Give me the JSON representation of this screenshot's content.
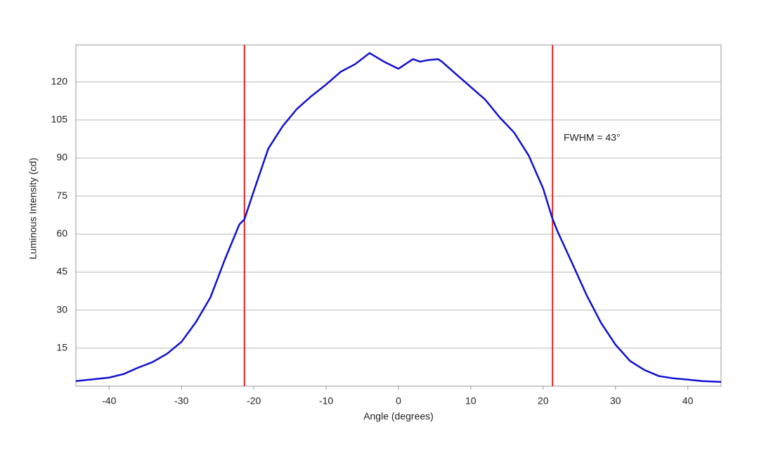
{
  "chart_data": {
    "type": "line",
    "xlabel": "Angle (degrees)",
    "ylabel": "Luminous Intensity (cd)",
    "annotation": "FWHM = 43°",
    "x": [
      -44.6,
      -40,
      -38,
      -36,
      -34,
      -32,
      -30,
      -28,
      -26,
      -24,
      -22,
      -21.3,
      -20,
      -18,
      -16,
      -14,
      -12,
      -10,
      -8,
      -6,
      -4,
      -2,
      0,
      2,
      3,
      4,
      5.5,
      6,
      8,
      10,
      12,
      14,
      16,
      18,
      20,
      21.3,
      22,
      24,
      26,
      28,
      30,
      32,
      34,
      36,
      38,
      40,
      42,
      44.6
    ],
    "series": [
      {
        "color": "#1010d0",
        "values": [
          2,
          3.4,
          4.8,
          7.3,
          9.5,
          12.8,
          17.5,
          25.3,
          35,
          50,
          63.8,
          65.8,
          77,
          93.7,
          102.6,
          109.5,
          114.5,
          119,
          124,
          127,
          131.4,
          128,
          125.2,
          129,
          128,
          128.6,
          129,
          128,
          123,
          118,
          113,
          106,
          100,
          91,
          78,
          66,
          61,
          48.6,
          36,
          25,
          16.4,
          10,
          6.4,
          4,
          3.1,
          2.6,
          2,
          1.7
        ]
      }
    ],
    "vlines": [
      -21.3,
      21.3
    ],
    "vline_color": "#e02020",
    "xlim": [
      -44.6,
      44.6
    ],
    "ylim": [
      0,
      134.6
    ],
    "xticks": [
      -40,
      -30,
      -20,
      -10,
      0,
      10,
      20,
      30,
      40
    ],
    "yticks": [
      15,
      30,
      45,
      60,
      75,
      90,
      105,
      120
    ],
    "grid": true
  }
}
